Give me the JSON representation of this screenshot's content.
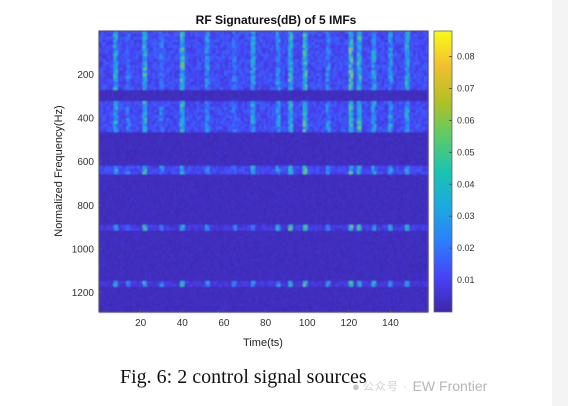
{
  "chart_data": {
    "type": "heatmap",
    "title": "RF Signatures(dB) of 5 IMFs",
    "xlabel": "Time(ts)",
    "ylabel": "Normalized Frequency(Hz)",
    "xlim": [
      0,
      158
    ],
    "ylim": [
      1290,
      0
    ],
    "x_ticks": [
      "20",
      "40",
      "60",
      "80",
      "100",
      "120",
      "140"
    ],
    "y_ticks": [
      "200",
      "400",
      "600",
      "800",
      "1000",
      "1200"
    ],
    "colorbar": {
      "min": 0,
      "max": 0.088,
      "ticks": [
        "0.01",
        "0.02",
        "0.03",
        "0.04",
        "0.05",
        "0.06",
        "0.07",
        "0.08"
      ]
    },
    "background_level": 0.002,
    "frequency_bands": [
      {
        "y_from": 0,
        "y_to": 270,
        "level": 0.012
      },
      {
        "y_from": 320,
        "y_to": 470,
        "level": 0.012
      },
      {
        "y_from": 615,
        "y_to": 660,
        "level": 0.011
      },
      {
        "y_from": 890,
        "y_to": 915,
        "level": 0.008
      },
      {
        "y_from": 1150,
        "y_to": 1170,
        "level": 0.007
      }
    ],
    "activity_columns": [
      {
        "x": 8,
        "level": 0.05
      },
      {
        "x": 14,
        "level": 0.03
      },
      {
        "x": 22,
        "level": 0.055
      },
      {
        "x": 30,
        "level": 0.03
      },
      {
        "x": 40,
        "level": 0.06
      },
      {
        "x": 52,
        "level": 0.04
      },
      {
        "x": 65,
        "level": 0.03
      },
      {
        "x": 74,
        "level": 0.045
      },
      {
        "x": 86,
        "level": 0.04
      },
      {
        "x": 92,
        "level": 0.06
      },
      {
        "x": 99,
        "level": 0.065
      },
      {
        "x": 110,
        "level": 0.035
      },
      {
        "x": 121,
        "level": 0.065
      },
      {
        "x": 125,
        "level": 0.06
      },
      {
        "x": 132,
        "level": 0.045
      },
      {
        "x": 140,
        "level": 0.04
      },
      {
        "x": 148,
        "level": 0.05
      }
    ]
  },
  "caption": "Fig. 6: 2 control signal sources",
  "watermark": {
    "icon": "chat-bubble-icon",
    "subtext": "公众号 ·",
    "text": "EW Frontier"
  }
}
